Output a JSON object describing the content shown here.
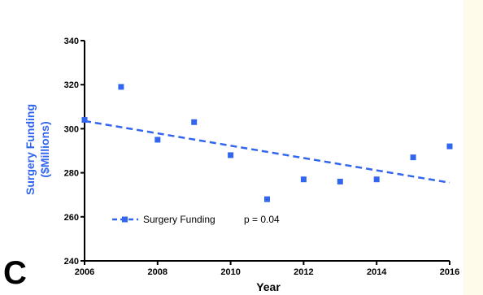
{
  "panel_label": "C",
  "chart_data": {
    "type": "scatter",
    "title": "",
    "xlabel": "Year",
    "ylabel_line1": "Surgery Funding",
    "ylabel_line2": "($Millions)",
    "xlim": [
      2006,
      2016
    ],
    "ylim": [
      240,
      340
    ],
    "x_ticks": [
      2006,
      2008,
      2010,
      2012,
      2014,
      2016
    ],
    "y_ticks": [
      240,
      260,
      280,
      300,
      320,
      340
    ],
    "grid": false,
    "legend_position": "bottom-left",
    "series": [
      {
        "name": "Surgery Funding",
        "color": "#3366ee",
        "marker": "square",
        "points": [
          {
            "x": 2006,
            "y": 304
          },
          {
            "x": 2007,
            "y": 319
          },
          {
            "x": 2008,
            "y": 295
          },
          {
            "x": 2009,
            "y": 303
          },
          {
            "x": 2010,
            "y": 288
          },
          {
            "x": 2011,
            "y": 268
          },
          {
            "x": 2012,
            "y": 277
          },
          {
            "x": 2013,
            "y": 276
          },
          {
            "x": 2014,
            "y": 277
          },
          {
            "x": 2015,
            "y": 287
          },
          {
            "x": 2016,
            "y": 292
          }
        ],
        "trendline": {
          "style": "dashed",
          "start": {
            "x": 2006,
            "y": 303.5
          },
          "end": {
            "x": 2016,
            "y": 275.5
          }
        }
      }
    ],
    "annotation": "p = 0.04"
  }
}
